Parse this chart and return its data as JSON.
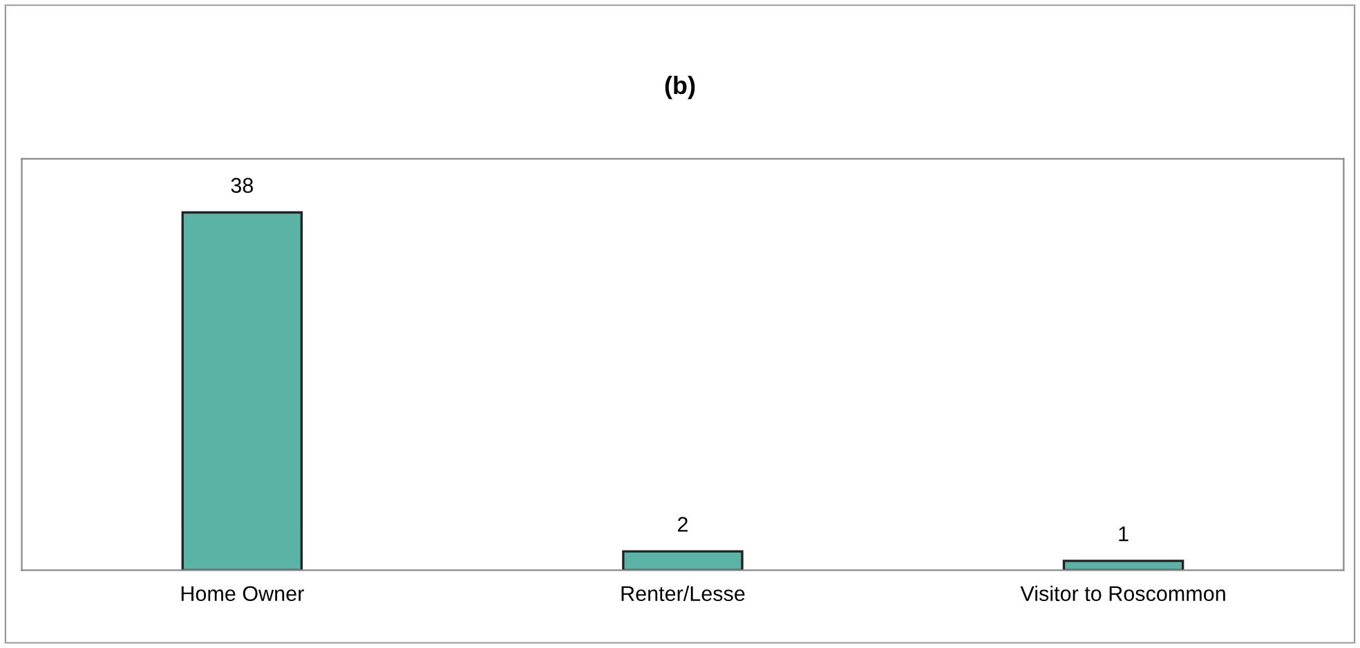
{
  "chart_data": {
    "type": "bar",
    "title": "(b)",
    "categories": [
      "Home Owner",
      "Renter/Lesse",
      "Visitor to Roscommon"
    ],
    "values": [
      38,
      2,
      1
    ],
    "color": "#5bb3a6",
    "data_labels": true,
    "tick_labels": "x",
    "grid": false,
    "legend": false
  }
}
